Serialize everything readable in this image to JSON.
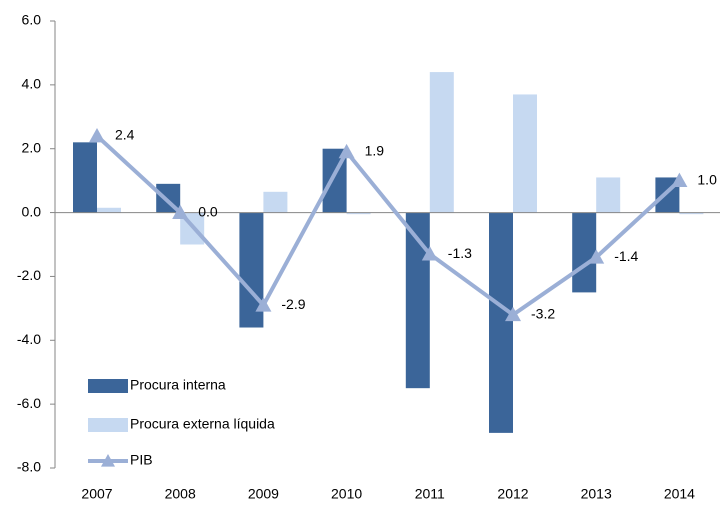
{
  "chart_data": {
    "type": "bar-line",
    "categories": [
      "2007",
      "2008",
      "2009",
      "2010",
      "2011",
      "2012",
      "2013",
      "2014"
    ],
    "series": [
      {
        "name": "Procura interna",
        "color": "#3b6599",
        "values": [
          2.2,
          0.9,
          -3.6,
          2.0,
          -5.5,
          -6.9,
          -2.5,
          1.1
        ]
      },
      {
        "name": "Procura externa líquida",
        "color": "#c6d9f1",
        "values": [
          0.15,
          -1.0,
          0.65,
          -0.05,
          4.4,
          3.7,
          1.1,
          -0.05
        ]
      },
      {
        "name": "PIB",
        "color": "#9bafd6",
        "type": "line",
        "values": [
          2.4,
          0.0,
          -2.9,
          1.9,
          -1.3,
          -3.2,
          -1.4,
          1.0
        ],
        "value_labels": [
          "2.4",
          "0.0",
          "-2.9",
          "1.9",
          "-1.3",
          "-3.2",
          "-1.4",
          "1.0"
        ]
      }
    ],
    "ylim": [
      -8,
      6
    ],
    "yticks": [
      {
        "value": -8,
        "label": "-8.0"
      },
      {
        "value": -6,
        "label": "-6.0"
      },
      {
        "value": -4,
        "label": "-4.0"
      },
      {
        "value": -2,
        "label": "-2.0"
      },
      {
        "value": 0,
        "label": "0.0"
      },
      {
        "value": 2,
        "label": "2.0"
      },
      {
        "value": 4,
        "label": "4.0"
      },
      {
        "value": 6,
        "label": "6.0"
      }
    ],
    "grid": false,
    "legend": "lower left"
  }
}
